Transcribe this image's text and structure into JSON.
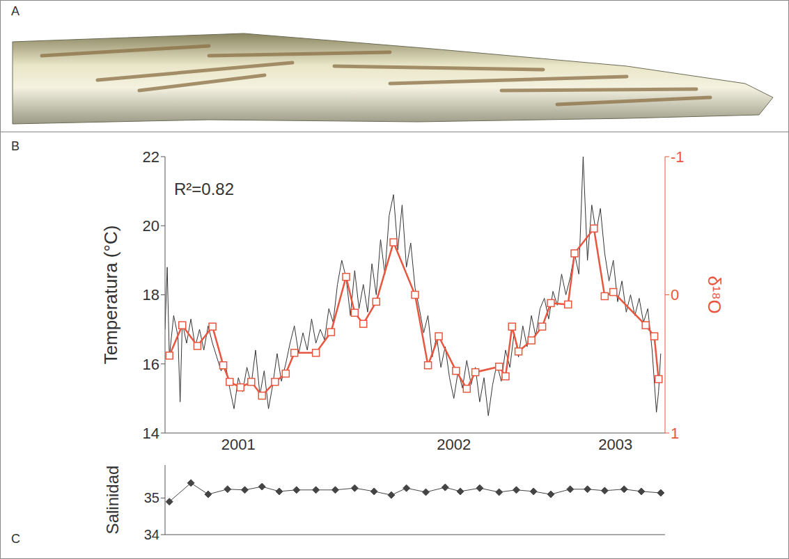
{
  "panel_labels": [
    "A",
    "B",
    "C"
  ],
  "chart_data": [
    {
      "type": "line",
      "annotation": "R²=0.82",
      "xlim": [
        2001.16,
        2003.48
      ],
      "xticks": [
        {
          "value": 2001.5,
          "label": "2001"
        },
        {
          "value": 2002.5,
          "label": "2002"
        },
        {
          "value": 2003.25,
          "label": "2003"
        }
      ],
      "ylim": [
        14,
        22
      ],
      "yticks": [
        14,
        16,
        18,
        20,
        22
      ],
      "y2lim": [
        1,
        -1
      ],
      "y2ticks": [
        -1,
        0,
        1
      ],
      "series": [
        {
          "name": "Temperatura (°C)",
          "color": "#333333",
          "marker": "none",
          "line_style": "solid",
          "x": [
            2001.16,
            2001.17,
            2001.18,
            2001.2,
            2001.22,
            2001.23,
            2001.24,
            2001.26,
            2001.28,
            2001.3,
            2001.32,
            2001.34,
            2001.36,
            2001.38,
            2001.4,
            2001.42,
            2001.44,
            2001.46,
            2001.48,
            2001.5,
            2001.52,
            2001.54,
            2001.56,
            2001.58,
            2001.6,
            2001.62,
            2001.64,
            2001.66,
            2001.68,
            2001.7,
            2001.72,
            2001.74,
            2001.76,
            2001.78,
            2001.8,
            2001.82,
            2001.84,
            2001.86,
            2001.88,
            2001.9,
            2001.92,
            2001.94,
            2001.96,
            2001.98,
            2002.0,
            2002.02,
            2002.04,
            2002.06,
            2002.08,
            2002.1,
            2002.12,
            2002.14,
            2002.16,
            2002.18,
            2002.2,
            2002.22,
            2002.24,
            2002.26,
            2002.28,
            2002.3,
            2002.32,
            2002.34,
            2002.36,
            2002.38,
            2002.4,
            2002.42,
            2002.44,
            2002.46,
            2002.48,
            2002.5,
            2002.52,
            2002.54,
            2002.56,
            2002.58,
            2002.6,
            2002.62,
            2002.64,
            2002.66,
            2002.68,
            2002.7,
            2002.72,
            2002.74,
            2002.76,
            2002.78,
            2002.8,
            2002.82,
            2002.84,
            2002.86,
            2002.88,
            2002.9,
            2002.92,
            2002.94,
            2002.96,
            2002.98,
            2003.0,
            2003.02,
            2003.04,
            2003.06,
            2003.08,
            2003.1,
            2003.12,
            2003.14,
            2003.16,
            2003.18,
            2003.2,
            2003.22,
            2003.24,
            2003.26,
            2003.28,
            2003.3,
            2003.32,
            2003.34,
            2003.36,
            2003.38,
            2003.4,
            2003.42,
            2003.44,
            2003.45,
            2003.46
          ],
          "values": [
            17.0,
            18.8,
            16.2,
            17.4,
            16.8,
            14.9,
            17.2,
            16.6,
            17.3,
            16.5,
            17.0,
            16.4,
            17.1,
            16.6,
            16.2,
            15.8,
            16.0,
            15.3,
            14.7,
            15.6,
            15.2,
            15.9,
            15.4,
            16.4,
            15.1,
            15.8,
            14.7,
            15.4,
            16.3,
            15.5,
            16.0,
            16.6,
            17.1,
            16.3,
            16.9,
            16.4,
            17.3,
            16.6,
            17.0,
            16.7,
            17.6,
            17.2,
            18.3,
            19.0,
            18.5,
            17.4,
            18.7,
            17.6,
            18.3,
            17.5,
            18.9,
            18.0,
            19.6,
            18.6,
            20.3,
            20.9,
            19.3,
            20.6,
            18.8,
            19.5,
            18.2,
            17.6,
            16.9,
            17.4,
            16.2,
            16.8,
            15.9,
            16.5,
            15.6,
            15.0,
            15.8,
            15.3,
            16.1,
            15.4,
            15.9,
            14.9,
            15.6,
            14.5,
            15.4,
            16.0,
            15.5,
            16.4,
            15.9,
            16.9,
            16.2,
            17.1,
            16.5,
            17.4,
            16.8,
            17.6,
            17.9,
            17.3,
            18.1,
            17.7,
            18.6,
            18.0,
            18.5,
            19.2,
            18.6,
            22.0,
            19.0,
            20.6,
            19.8,
            20.5,
            19.2,
            18.4,
            19.0,
            17.8,
            18.4,
            17.5,
            18.0,
            17.4,
            17.9,
            17.2,
            17.6,
            16.4,
            14.6,
            15.2,
            16.3
          ]
        },
        {
          "name": "δ¹⁸O",
          "color": "#e8563f",
          "axis": "y2",
          "marker": "square",
          "line_style": "solid",
          "x": [
            2001.18,
            2001.24,
            2001.31,
            2001.38,
            2001.43,
            2001.46,
            2001.51,
            2001.56,
            2001.61,
            2001.67,
            2001.72,
            2001.76,
            2001.86,
            2001.93,
            2002.0,
            2002.04,
            2002.08,
            2002.14,
            2002.22,
            2002.32,
            2002.38,
            2002.43,
            2002.51,
            2002.56,
            2002.6,
            2002.71,
            2002.74,
            2002.77,
            2002.8,
            2002.86,
            2002.91,
            2002.95,
            2003.03,
            2003.06,
            2003.15,
            2003.2,
            2003.24,
            2003.39,
            2003.43,
            2003.45
          ],
          "values": [
            0.44,
            0.22,
            0.37,
            0.23,
            0.51,
            0.63,
            0.67,
            0.63,
            0.73,
            0.63,
            0.57,
            0.42,
            0.42,
            0.27,
            -0.13,
            0.13,
            0.21,
            0.05,
            -0.38,
            0.0,
            0.51,
            0.3,
            0.55,
            0.68,
            0.56,
            0.52,
            0.59,
            0.23,
            0.41,
            0.33,
            0.23,
            0.06,
            0.07,
            -0.3,
            -0.48,
            0.01,
            -0.02,
            0.22,
            0.3,
            0.61
          ]
        }
      ]
    },
    {
      "type": "line",
      "xlim": [
        2001.16,
        2003.48
      ],
      "ylim": [
        34,
        35.9
      ],
      "yticks": [
        34,
        35
      ],
      "tick_labels": "y",
      "series": [
        {
          "name": "Salinidad",
          "color": "#444444",
          "marker": "diamond",
          "line_style": "solid",
          "x": [
            2001.18,
            2001.28,
            2001.36,
            2001.45,
            2001.53,
            2001.61,
            2001.69,
            2001.77,
            2001.86,
            2001.95,
            2002.04,
            2002.13,
            2002.21,
            2002.28,
            2002.37,
            2002.46,
            2002.53,
            2002.62,
            2002.71,
            2002.79,
            2002.87,
            2002.95,
            2003.04,
            2003.12,
            2003.2,
            2003.29,
            2003.37,
            2003.46
          ],
          "values": [
            34.9,
            35.41,
            35.1,
            35.24,
            35.22,
            35.31,
            35.18,
            35.22,
            35.22,
            35.22,
            35.27,
            35.18,
            35.08,
            35.27,
            35.16,
            35.29,
            35.18,
            35.27,
            35.16,
            35.22,
            35.18,
            35.1,
            35.24,
            35.24,
            35.2,
            35.24,
            35.18,
            35.14
          ]
        }
      ]
    }
  ]
}
